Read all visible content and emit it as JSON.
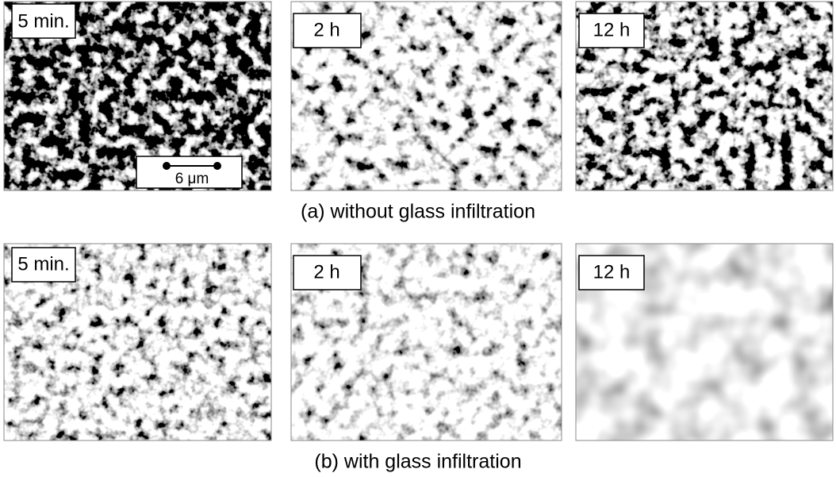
{
  "rows": [
    {
      "caption": "(a) without glass infiltration",
      "panels": [
        {
          "label": "5 min."
        },
        {
          "label": "2 h"
        },
        {
          "label": "12 h"
        }
      ]
    },
    {
      "caption": "(b) with glass infiltration",
      "panels": [
        {
          "label": "5 min."
        },
        {
          "label": "2 h"
        },
        {
          "label": "12 h"
        }
      ]
    }
  ],
  "scale_bar": {
    "label": "6 μm"
  }
}
